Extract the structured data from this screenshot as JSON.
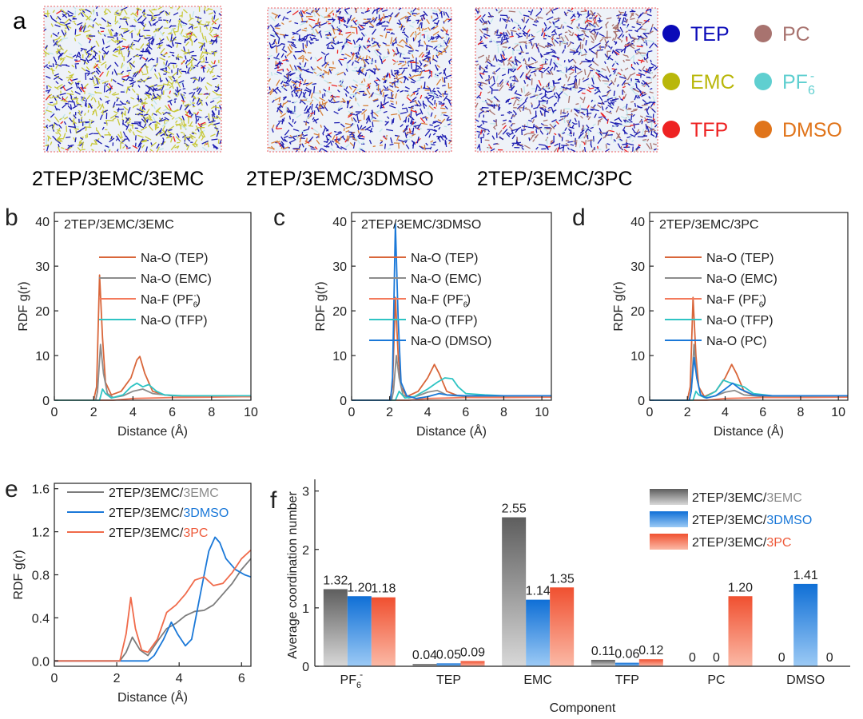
{
  "panel_a": {
    "letter": "a",
    "systems": [
      "2TEP/3EMC/3EMC",
      "2TEP/3EMC/3DMSO",
      "2TEP/3EMC/3PC"
    ],
    "legend": [
      {
        "name": "TEP",
        "color": "#0a0ab8"
      },
      {
        "name": "PC",
        "color": "#a8736f"
      },
      {
        "name": "EMC",
        "color": "#b9b70a"
      },
      {
        "name": "PF",
        "sub": "6",
        "sup": "-",
        "color": "#5fcfd0"
      },
      {
        "name": "TFP",
        "color": "#ee2222"
      },
      {
        "name": "DMSO",
        "color": "#e0741a"
      }
    ],
    "colors": {
      "TEP": "#1b1bb0",
      "EMC": "#c8c83a",
      "DMSO": "#d6803a",
      "PC": "#a8736f",
      "PF6": "#bfe6ea",
      "TFP": "#ee2222"
    }
  },
  "chart_data": [
    {
      "type": "line",
      "letter": "b",
      "title": "2TEP/3EMC/3EMC",
      "xlabel": "Distance (Å)",
      "ylabel": "RDF g(r)",
      "xlim": [
        0,
        10
      ],
      "ylim": [
        0,
        42
      ],
      "xticks": [
        "0",
        "2",
        "4",
        "6",
        "8",
        "10"
      ],
      "yticks": [
        "0",
        "10",
        "20",
        "30",
        "40"
      ],
      "legend_position": "top-right",
      "series": [
        {
          "name": "Na-O (TEP)",
          "color": "#d9663a",
          "x": [
            0,
            2,
            2.15,
            2.3,
            2.45,
            2.6,
            2.9,
            3.4,
            3.9,
            4.2,
            4.35,
            4.6,
            5.0,
            5.6,
            6.5,
            8,
            10
          ],
          "y": [
            0,
            0,
            3,
            28,
            14,
            4,
            1.2,
            2,
            5,
            9,
            9.8,
            6,
            2,
            1.2,
            0.9,
            0.8,
            0.8
          ]
        },
        {
          "name": "Na-O (EMC)",
          "color": "#8c8c8c",
          "x": [
            0,
            2.1,
            2.2,
            2.35,
            2.5,
            2.7,
            3.0,
            3.5,
            4.0,
            4.5,
            5.0,
            6,
            8,
            10
          ],
          "y": [
            0,
            0,
            2,
            12.5,
            6,
            1.5,
            0.6,
            1,
            2,
            2.5,
            1.5,
            1,
            0.9,
            0.9
          ]
        },
        {
          "name": "Na-F (PF",
          "name_sub": "6",
          "name_sup": "-",
          "name_tail": ")",
          "color": "#f47a5c",
          "x": [
            0,
            3,
            4,
            6,
            8,
            10
          ],
          "y": [
            0,
            0,
            0.4,
            0.6,
            0.7,
            0.8
          ]
        },
        {
          "name": "Na-O (TFP)",
          "color": "#2fc4c4",
          "x": [
            0,
            2.3,
            2.45,
            2.6,
            2.9,
            3.5,
            3.9,
            4.2,
            4.5,
            4.8,
            5.2,
            5.6,
            6.5,
            8,
            10
          ],
          "y": [
            0,
            0,
            2.5,
            1.5,
            0.5,
            1.2,
            3,
            3.8,
            3,
            3.5,
            2,
            1.2,
            1,
            1,
            1
          ]
        }
      ]
    },
    {
      "type": "line",
      "letter": "c",
      "title": "2TEP/3EMC/3DMSO",
      "xlabel": "Distance (Å)",
      "ylabel": "RDF g(r)",
      "xlim": [
        0,
        10.5
      ],
      "ylim": [
        0,
        42
      ],
      "xticks": [
        "0",
        "2",
        "4",
        "6",
        "8",
        "10"
      ],
      "yticks": [
        "0",
        "10",
        "20",
        "30",
        "40"
      ],
      "legend_position": "top-right",
      "series": [
        {
          "name": "Na-O (TEP)",
          "color": "#d9663a",
          "x": [
            0,
            2,
            2.15,
            2.3,
            2.45,
            2.6,
            2.9,
            3.5,
            4.0,
            4.35,
            4.6,
            5.0,
            5.6,
            6.5,
            8,
            10.5
          ],
          "y": [
            0,
            0,
            3,
            23,
            10,
            3,
            0.8,
            2,
            5,
            8,
            6,
            2,
            1,
            0.8,
            0.8,
            0.8
          ]
        },
        {
          "name": "Na-O (EMC)",
          "color": "#8c8c8c",
          "x": [
            0,
            2.1,
            2.2,
            2.35,
            2.5,
            2.7,
            3.0,
            3.5,
            4.0,
            4.5,
            5.0,
            6,
            8,
            10.5
          ],
          "y": [
            0,
            0,
            2,
            10,
            5,
            1.2,
            0.5,
            1,
            1.8,
            2.2,
            1.2,
            0.8,
            0.7,
            0.7
          ]
        },
        {
          "name": "Na-F (PF",
          "name_sub": "6",
          "name_sup": "-",
          "name_tail": ")",
          "color": "#f47a5c",
          "x": [
            0,
            3,
            4,
            6,
            8,
            10.5
          ],
          "y": [
            0,
            0,
            0.4,
            0.6,
            0.6,
            0.7
          ]
        },
        {
          "name": "Na-O (TFP)",
          "color": "#2fc4c4",
          "x": [
            0,
            2.3,
            2.5,
            2.8,
            3.3,
            4.0,
            4.5,
            4.9,
            5.3,
            5.6,
            6.0,
            7,
            8,
            10.5
          ],
          "y": [
            0,
            0,
            2,
            0.5,
            0.8,
            2.5,
            4,
            5,
            4.8,
            3,
            1.5,
            1.2,
            1,
            1
          ]
        },
        {
          "name": "Na-O (DMSO)",
          "color": "#1a78d8",
          "x": [
            0,
            2.05,
            2.15,
            2.3,
            2.45,
            2.6,
            2.9,
            3.4,
            4.0,
            4.6,
            5.0,
            6,
            8,
            10.5
          ],
          "y": [
            0,
            0,
            5,
            39.5,
            18,
            4,
            1,
            0.4,
            0.8,
            1.5,
            1.2,
            1,
            1,
            1
          ]
        }
      ]
    },
    {
      "type": "line",
      "letter": "d",
      "title": "2TEP/3EMC/3PC",
      "xlabel": "Distance (Å)",
      "ylabel": "RDF g(r)",
      "xlim": [
        0,
        10.5
      ],
      "ylim": [
        0,
        42
      ],
      "xticks": [
        "0",
        "2",
        "4",
        "6",
        "8",
        "10"
      ],
      "yticks": [
        "0",
        "10",
        "20",
        "30",
        "40"
      ],
      "legend_position": "top-right",
      "series": [
        {
          "name": "Na-O (TEP)",
          "color": "#d9663a",
          "x": [
            0,
            2,
            2.15,
            2.3,
            2.45,
            2.6,
            2.9,
            3.5,
            4.0,
            4.35,
            4.6,
            5.0,
            5.6,
            6.5,
            8,
            10.5
          ],
          "y": [
            0,
            0,
            3,
            23,
            10,
            3,
            0.8,
            2,
            5,
            8,
            6,
            2,
            1,
            0.8,
            0.8,
            0.8
          ]
        },
        {
          "name": "Na-O (EMC)",
          "color": "#8c8c8c",
          "x": [
            0,
            2.1,
            2.2,
            2.35,
            2.5,
            2.7,
            3.0,
            3.5,
            4.0,
            4.5,
            5.0,
            6,
            8,
            10.5
          ],
          "y": [
            0,
            0,
            2,
            12.5,
            5,
            1.2,
            0.5,
            1,
            1.8,
            2.2,
            1.2,
            0.8,
            0.7,
            0.7
          ]
        },
        {
          "name": "Na-F (PF",
          "name_sub": "6",
          "name_sup": "-",
          "name_tail": ")",
          "color": "#f47a5c",
          "x": [
            0,
            3,
            4,
            6,
            8,
            10.5
          ],
          "y": [
            0,
            0,
            0.4,
            0.6,
            0.6,
            0.7
          ]
        },
        {
          "name": "Na-O (TFP)",
          "color": "#2fc4c4",
          "x": [
            0,
            2.3,
            2.45,
            2.6,
            2.9,
            3.5,
            3.9,
            4.2,
            4.6,
            5.0,
            5.5,
            6.5,
            8,
            10.5
          ],
          "y": [
            0,
            0,
            2,
            1.2,
            0.6,
            2,
            4.5,
            4,
            3.5,
            3,
            1.5,
            1,
            1,
            1
          ]
        },
        {
          "name": "Na-O (PC)",
          "color": "#1a78d8",
          "x": [
            0,
            2.1,
            2.2,
            2.35,
            2.5,
            2.7,
            3.0,
            3.5,
            4.0,
            4.4,
            4.8,
            5.5,
            6.5,
            8,
            10.5
          ],
          "y": [
            0,
            0,
            2,
            9.5,
            5,
            1.2,
            0.5,
            1,
            2.5,
            3.8,
            2.5,
            1.2,
            1,
            1,
            1
          ]
        }
      ]
    },
    {
      "type": "line",
      "letter": "e",
      "xlabel": "Distance (Å)",
      "ylabel": "RDF g(r)",
      "xlim": [
        0,
        6.3
      ],
      "ylim": [
        -0.05,
        1.65
      ],
      "xticks": [
        "0",
        "2",
        "4",
        "6"
      ],
      "yticks": [
        "0.0",
        "0.4",
        "0.8",
        "1.2",
        "1.6"
      ],
      "legend_position": "top-left",
      "series": [
        {
          "name": "2TEP/3EMC/",
          "name_suffix": "3EMC",
          "suffix_color": "#8c8c8c",
          "color": "#7c7c7c",
          "x": [
            0,
            2.1,
            2.3,
            2.5,
            2.75,
            3.0,
            3.3,
            3.6,
            3.9,
            4.2,
            4.5,
            4.8,
            5.1,
            5.4,
            5.7,
            6.0,
            6.3
          ],
          "y": [
            0,
            0,
            0.08,
            0.22,
            0.1,
            0.05,
            0.18,
            0.3,
            0.35,
            0.42,
            0.46,
            0.47,
            0.52,
            0.62,
            0.72,
            0.85,
            0.95
          ]
        },
        {
          "name": "2TEP/3EMC/",
          "name_suffix": "3DMSO",
          "suffix_color": "#1a78d8",
          "color": "#1a78d8",
          "x": [
            0,
            3.0,
            3.2,
            3.5,
            3.75,
            3.95,
            4.2,
            4.4,
            4.7,
            4.95,
            5.15,
            5.3,
            5.5,
            5.8,
            6.1,
            6.3
          ],
          "y": [
            0,
            0,
            0.05,
            0.2,
            0.36,
            0.25,
            0.14,
            0.2,
            0.65,
            1.02,
            1.15,
            1.1,
            0.95,
            0.85,
            0.8,
            0.78
          ]
        },
        {
          "name": "2TEP/3EMC/",
          "name_suffix": "3PC",
          "suffix_color": "#ee5a3a",
          "color": "#f06a4a",
          "x": [
            0,
            2.1,
            2.3,
            2.45,
            2.6,
            2.8,
            3.0,
            3.3,
            3.6,
            3.9,
            4.2,
            4.5,
            4.8,
            5.1,
            5.4,
            5.7,
            6.0,
            6.3
          ],
          "y": [
            0,
            0,
            0.25,
            0.59,
            0.3,
            0.1,
            0.08,
            0.2,
            0.45,
            0.52,
            0.62,
            0.75,
            0.78,
            0.7,
            0.72,
            0.82,
            0.95,
            1.03
          ]
        }
      ]
    },
    {
      "type": "bar",
      "letter": "f",
      "xlabel": "Component",
      "ylabel": "Average coordination number",
      "ylim": [
        0,
        3.2
      ],
      "yticks": [
        "0",
        "1",
        "2",
        "3"
      ],
      "legend_position": "top-right",
      "categories": [
        "PF6-",
        "TEP",
        "EMC",
        "TFP",
        "PC",
        "DMSO"
      ],
      "series": [
        {
          "name": "2TEP/3EMC/",
          "name_suffix": "3EMC",
          "suffix_color": "#8c8c8c",
          "color": "#6e6e6e",
          "values": [
            1.32,
            0.04,
            2.55,
            0.11,
            0,
            0
          ],
          "labels": [
            "1.32",
            "0.04",
            "2.55",
            "0.11",
            "0",
            "0"
          ]
        },
        {
          "name": "2TEP/3EMC/",
          "name_suffix": "3DMSO",
          "suffix_color": "#1a78d8",
          "color": "#1a78d8",
          "values": [
            1.2,
            0.05,
            1.14,
            0.06,
            0,
            1.41
          ],
          "labels": [
            "1.20",
            "0.05",
            "1.14",
            "0.06",
            "0",
            "1.41"
          ]
        },
        {
          "name": "2TEP/3EMC/",
          "name_suffix": "3PC",
          "suffix_color": "#ee5a3a",
          "color": "#f05a3e",
          "values": [
            1.18,
            0.09,
            1.35,
            0.12,
            1.2,
            0
          ],
          "labels": [
            "1.18",
            "0.09",
            "1.35",
            "0.12",
            "1.20",
            "0"
          ]
        }
      ]
    }
  ]
}
